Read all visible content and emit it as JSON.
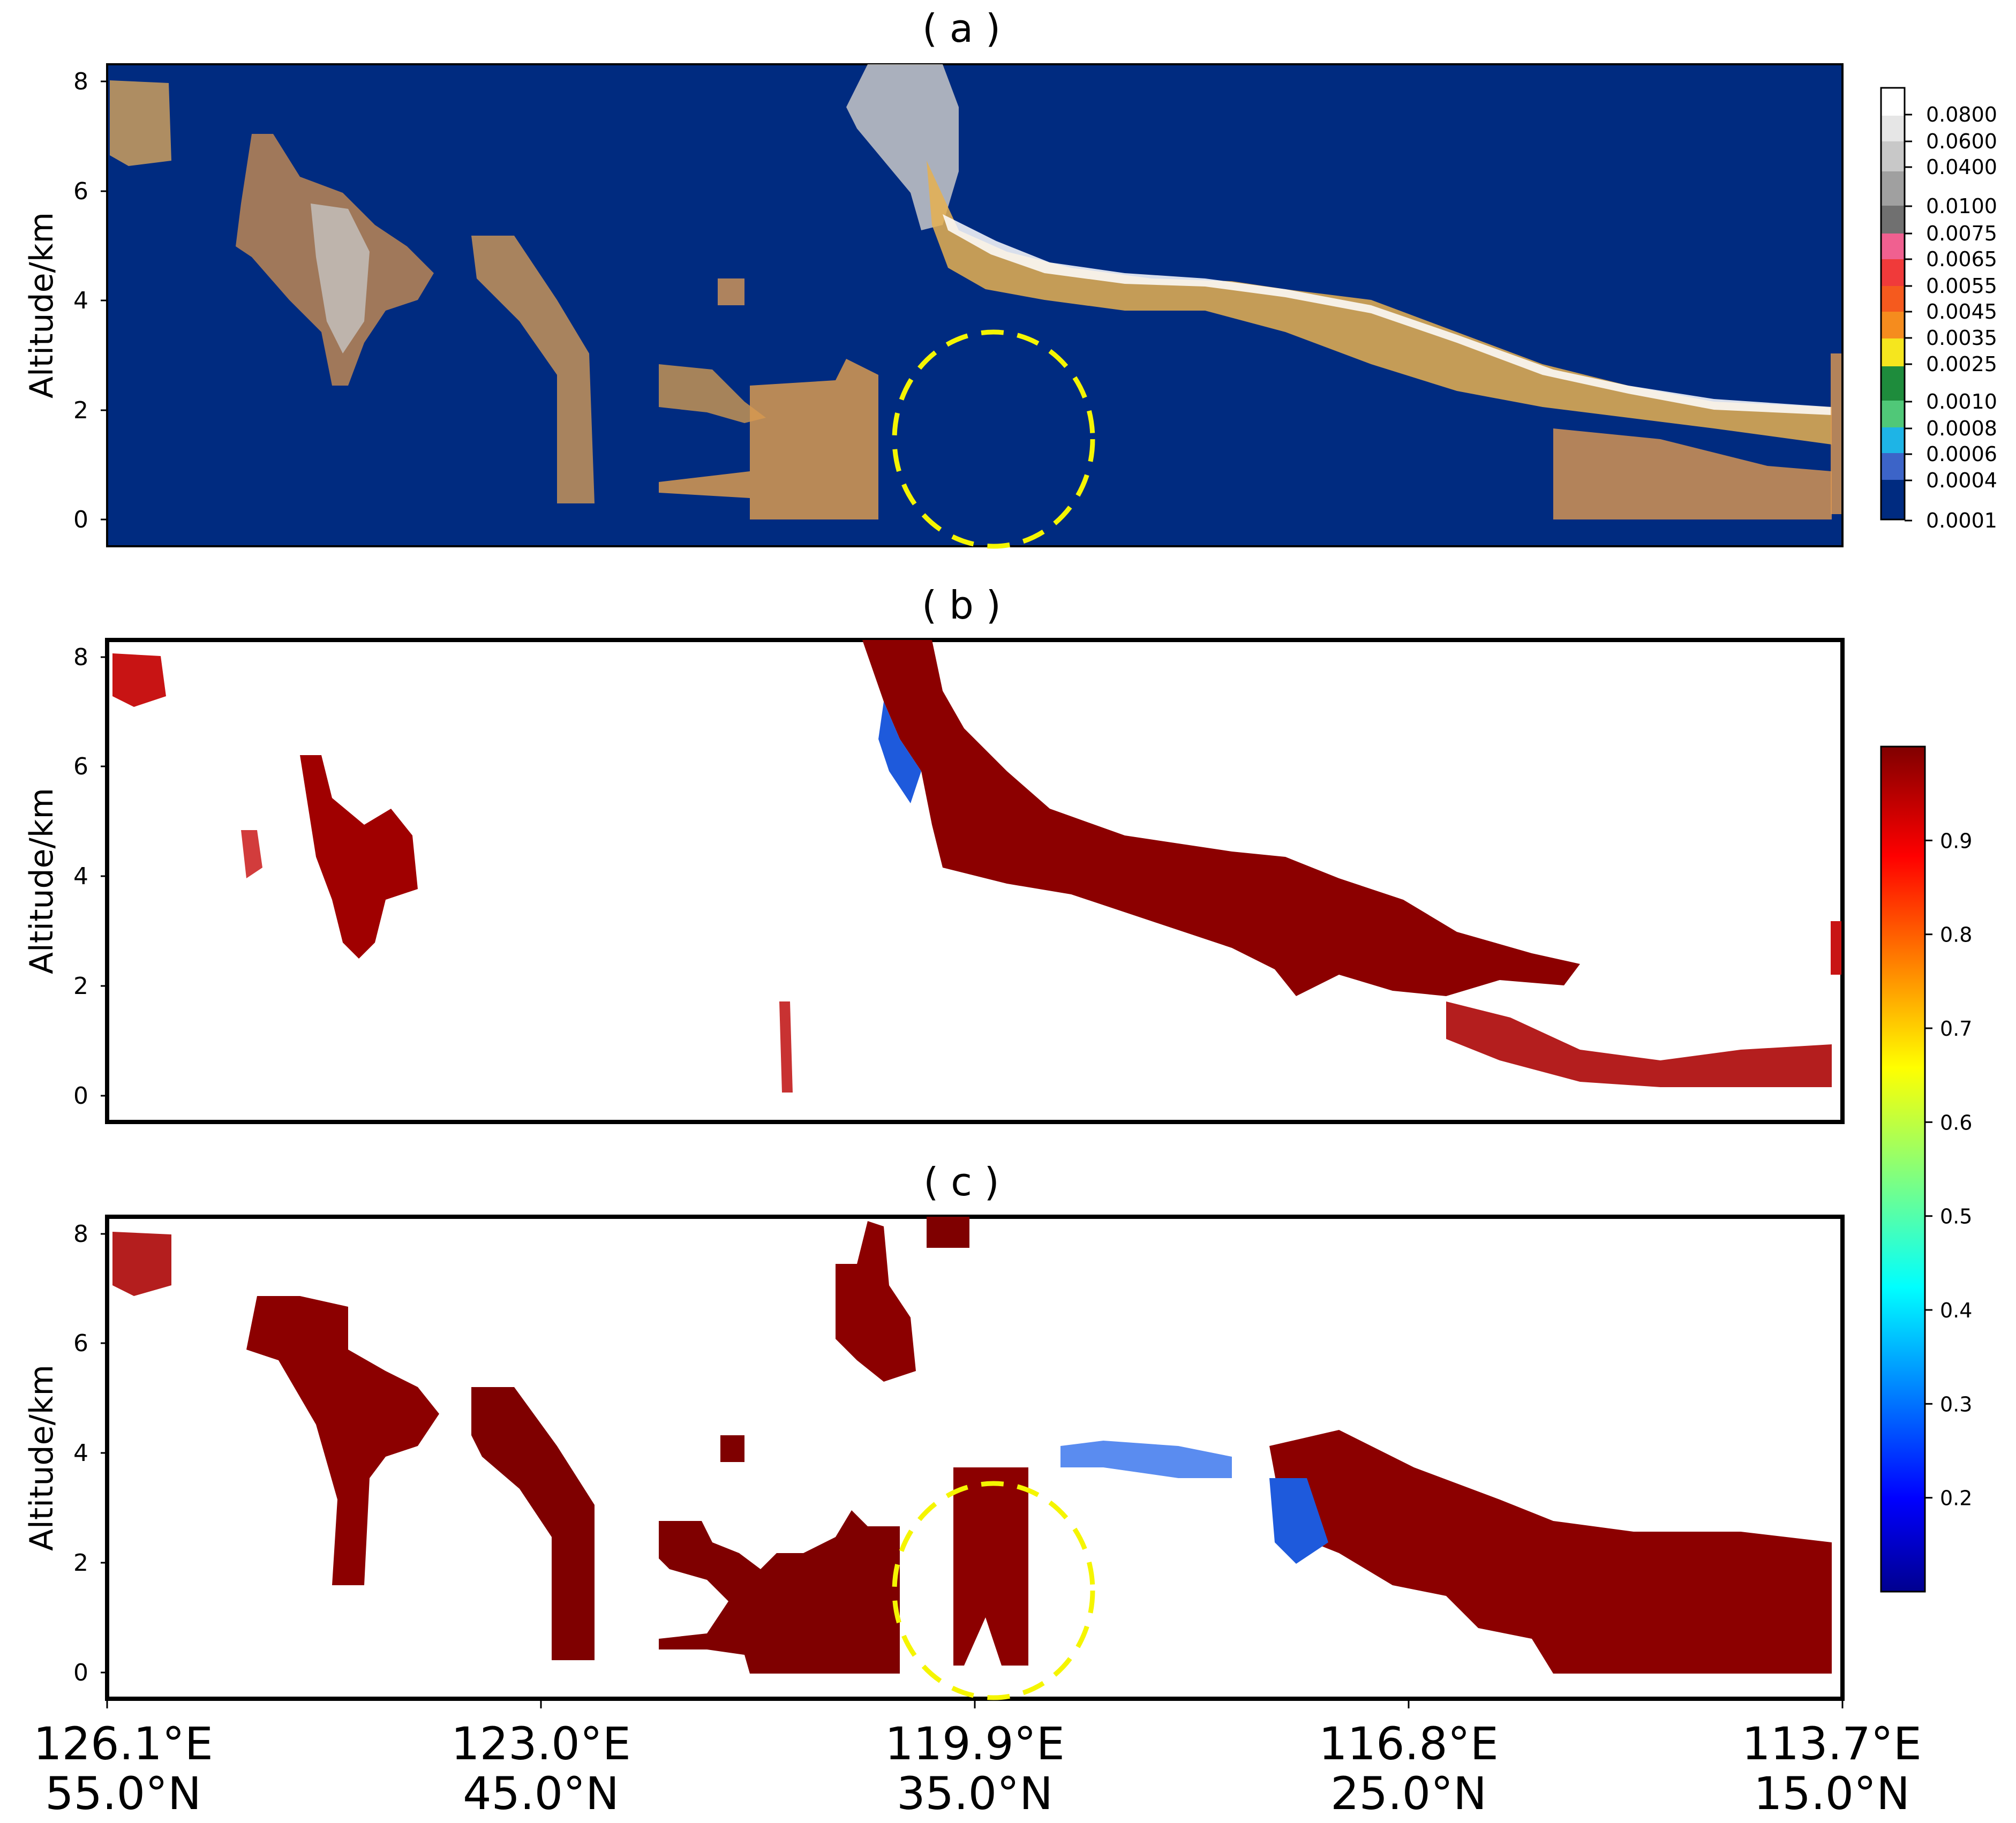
{
  "chart_data": [
    {
      "type": "heatmap",
      "panel_label": "( a )",
      "ylabel": "Altitude/km",
      "yticks": [
        "0",
        "2",
        "4",
        "6",
        "8"
      ],
      "ylim": [
        0,
        8.3
      ],
      "x_ticks": [
        {
          "lon": "126.1°E",
          "lat": "55.0°N"
        },
        {
          "lon": "123.0°E",
          "lat": "45.0°N"
        },
        {
          "lon": "119.9°E",
          "lat": "35.0°N"
        },
        {
          "lon": "116.8°E",
          "lat": "25.0°N"
        },
        {
          "lon": "113.7°E",
          "lat": "15.0°N"
        }
      ],
      "background_color": "#002b80",
      "colorbar": {
        "type": "discrete",
        "ticks": [
          "0.0800",
          "0.0600",
          "0.0400",
          "0.0100",
          "0.0075",
          "0.0065",
          "0.0055",
          "0.0045",
          "0.0035",
          "0.0025",
          "0.0010",
          "0.0008",
          "0.0006",
          "0.0004",
          "0.0001"
        ],
        "colors": [
          "#ffffff",
          "#e6e6e6",
          "#c8c8c8",
          "#a0a0a0",
          "#707070",
          "#f06090",
          "#f03a3a",
          "#f55a1e",
          "#f58c1e",
          "#f5e61e",
          "#1e8c3c",
          "#50c878",
          "#1eb4e6",
          "#3c64c8",
          "#002b80"
        ]
      },
      "annotation": "dashed yellow circle near 119.9°E, 0–3.5 km"
    },
    {
      "type": "heatmap",
      "panel_label": "( b )",
      "ylabel": "Altitude/km",
      "yticks": [
        "0",
        "2",
        "4",
        "6",
        "8"
      ],
      "ylim": [
        0,
        8.3
      ],
      "background_color": "#ffffff"
    },
    {
      "type": "heatmap",
      "panel_label": "( c )",
      "ylabel": "Altitude/km",
      "yticks": [
        "0",
        "2",
        "4",
        "6",
        "8"
      ],
      "ylim": [
        0,
        8.3
      ],
      "background_color": "#ffffff",
      "annotation": "dashed yellow circle near 119.9°E, 0–3.5 km"
    }
  ],
  "colorbar_bc": {
    "colormap": "jet",
    "range": [
      0.1,
      1.0
    ],
    "ticks": [
      "0.9",
      "0.8",
      "0.7",
      "0.6",
      "0.5",
      "0.4",
      "0.3",
      "0.2"
    ],
    "tick_values": [
      0.9,
      0.8,
      0.7,
      0.6,
      0.5,
      0.4,
      0.3,
      0.2
    ]
  }
}
